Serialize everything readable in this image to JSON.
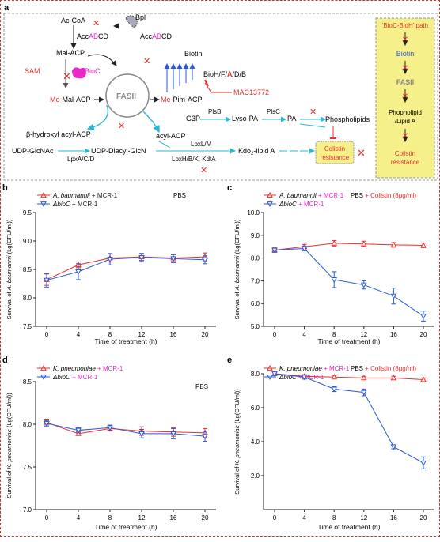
{
  "panel_a": {
    "label": "a",
    "nodes": {
      "ac_coa": "Ac-CoA",
      "accabcd_left_pre": "Acc",
      "accabcd_left_hl": "AB",
      "accabcd_left_post": "CD",
      "accabcd_right_pre": "Acc",
      "accabcd_right_hl": "AB",
      "accabcd_right_post": "CD",
      "bpl": "Bpl",
      "mal_acp": "Mal-ACP",
      "sam": "SAM",
      "bioc": "BioC",
      "me_mal_acp_hl": "Me",
      "me_mal_acp_rest": "-Mal-ACP",
      "fasii": "FASII",
      "biotin": "Biotin",
      "biohfadb_pre": "BioH/F/",
      "biohfadb_hl": "A",
      "biohfadb_post": "/D/B",
      "mac13772": "MAC13772",
      "me_pim_acp_hl": "Me",
      "me_pim_acp_rest": "-Pim-ACP",
      "hydroxyl_acp": "β-hydroxyl acyl-ACP",
      "acyl_acp": "acyl-ACP",
      "g3p": "G3P",
      "plsb": "PlsB",
      "lyso_pa": "Lyso-PA",
      "plsc": "PlsC",
      "pa": "PA",
      "phospholipids": "Phospholipids",
      "udp_glcnac": "UDP-GlcNAc",
      "lpxacd": "LpxA/C/D",
      "udp_diacyl": "UDP-Diacyl-GlcN",
      "lpxlm": "LpxL/M",
      "lpxhbk": "LpxH/B/K, KdtA",
      "kdo_pre": "Kdo",
      "kdo_sub": "2",
      "kdo_post": "-lipid A",
      "colistin_res_1": "Colistin",
      "colistin_res_2": "resistance"
    },
    "side_path": {
      "title": "'BioC-BioH' path",
      "biotin": "Biotin",
      "fasii": "FASII",
      "phospholipid_1": "Phopholipid",
      "phospholipid_2": "/Lipid A",
      "colistin_1": "Colistin",
      "colistin_2": "resistance"
    },
    "colors": {
      "red": "#e8312f",
      "blue": "#2b59d6",
      "magenta": "#ea28c6",
      "cyan": "#27b8d6",
      "highlight_box": "#f5f08a",
      "gray_text": "#8a8a8a"
    }
  },
  "chart_data": [
    {
      "id": "b",
      "type": "line",
      "ylabel": "Survival of A. baumannii (Lg(CFU/ml))",
      "ylabel_species": "A. baumannii",
      "xlabel": "Time of treatment (h)",
      "x": [
        0,
        4,
        8,
        12,
        16,
        20
      ],
      "xticks": [
        "0",
        "4",
        "8",
        "12",
        "16",
        "20"
      ],
      "ylim": [
        7.5,
        9.5
      ],
      "yticks": [
        "7.5",
        "8.0",
        "8.5",
        "9.0",
        "9.5"
      ],
      "condition": "PBS",
      "series": [
        {
          "name": "A. baumannii + MCR-1",
          "marker": "triangle-up",
          "color": "#e8312f",
          "values": [
            8.32,
            8.58,
            8.7,
            8.72,
            8.7,
            8.72
          ],
          "errors": [
            0.1,
            0.05,
            0.07,
            0.06,
            0.06,
            0.07
          ]
        },
        {
          "name": "ΔbioC + MCR-1",
          "marker": "triangle-down",
          "color": "#2b59d6",
          "values": [
            8.31,
            8.46,
            8.68,
            8.71,
            8.69,
            8.67
          ],
          "errors": [
            0.12,
            0.14,
            0.1,
            0.07,
            0.07,
            0.07
          ]
        }
      ]
    },
    {
      "id": "c",
      "type": "line",
      "ylabel": "Survival of A. baumannii (Lg(CFU/ml))",
      "ylabel_species": "A. baumannii",
      "xlabel": "Time of treatment (h)",
      "x": [
        0,
        4,
        8,
        12,
        16,
        20
      ],
      "xticks": [
        "0",
        "4",
        "8",
        "12",
        "16",
        "20"
      ],
      "ylim": [
        5.0,
        10.0
      ],
      "yticks": [
        "5.0",
        "6.0",
        "7.0",
        "8.0",
        "9.0",
        "10.0"
      ],
      "condition": "PBS",
      "condition_extra": " + Colistin (8μg/ml)",
      "series": [
        {
          "name": "A. baumannii + MCR-1",
          "marker": "triangle-up",
          "color": "#e8312f",
          "values": [
            8.35,
            8.5,
            8.65,
            8.62,
            8.58,
            8.56
          ],
          "errors": [
            0.1,
            0.1,
            0.12,
            0.12,
            0.1,
            0.1
          ]
        },
        {
          "name": "ΔbioC + MCR-1",
          "marker": "triangle-down",
          "color": "#2b59d6",
          "values": [
            8.35,
            8.42,
            7.05,
            6.82,
            6.33,
            5.45
          ],
          "errors": [
            0.08,
            0.1,
            0.35,
            0.18,
            0.35,
            0.22
          ]
        }
      ]
    },
    {
      "id": "d",
      "type": "line",
      "ylabel": "Survival of K. pneumoniae (Lg(CFU/ml))",
      "ylabel_species": "K. pneumoniae",
      "xlabel": "Time of treatment (h)",
      "x": [
        0,
        4,
        8,
        12,
        16,
        20
      ],
      "xticks": [
        "0",
        "4",
        "8",
        "12",
        "16",
        "20"
      ],
      "ylim": [
        7.0,
        8.5
      ],
      "yticks": [
        "7.0",
        "7.5",
        "8.0",
        "8.5"
      ],
      "condition": "PBS",
      "series": [
        {
          "name": "K. pneumoniae + MCR-1",
          "marker": "triangle-up",
          "color": "#e8312f",
          "values": [
            8.02,
            7.89,
            7.95,
            7.92,
            7.91,
            7.9
          ],
          "errors": [
            0.04,
            0.02,
            0.03,
            0.05,
            0.05,
            0.05
          ]
        },
        {
          "name": "ΔbioC + MCR-1",
          "marker": "triangle-down",
          "color": "#2b59d6",
          "values": [
            8.01,
            7.93,
            7.96,
            7.89,
            7.89,
            7.86
          ],
          "errors": [
            0.03,
            0.03,
            0.03,
            0.05,
            0.06,
            0.06
          ]
        }
      ]
    },
    {
      "id": "e",
      "type": "line",
      "ylabel": "Survival of K. pneumoniae (Lg(CFU/ml))",
      "ylabel_species": "K. pneumoniae",
      "xlabel": "Time of treatment (h)",
      "x": [
        0,
        4,
        8,
        12,
        16,
        20
      ],
      "xticks": [
        "0",
        "4",
        "8",
        "12",
        "16",
        "20"
      ],
      "ylim": [
        0.0,
        8.0
      ],
      "yticks": [
        "2.0",
        "4.0",
        "6.0",
        "8.0"
      ],
      "condition": "PBS",
      "condition_extra": " + Colistin (8μg/ml)",
      "series": [
        {
          "name": "K. pneumoniae + MCR-1",
          "marker": "triangle-up",
          "color": "#e8312f",
          "values": [
            8.0,
            7.85,
            7.8,
            7.75,
            7.75,
            7.65
          ],
          "errors": [
            0.1,
            0.1,
            0.1,
            0.1,
            0.1,
            0.1
          ]
        },
        {
          "name": "ΔbioC + MCR-1",
          "marker": "triangle-down",
          "color": "#2b59d6",
          "values": [
            8.0,
            7.8,
            7.1,
            6.9,
            3.7,
            2.75
          ],
          "errors": [
            0.1,
            0.12,
            0.15,
            0.2,
            0.12,
            0.35
          ]
        }
      ]
    }
  ]
}
